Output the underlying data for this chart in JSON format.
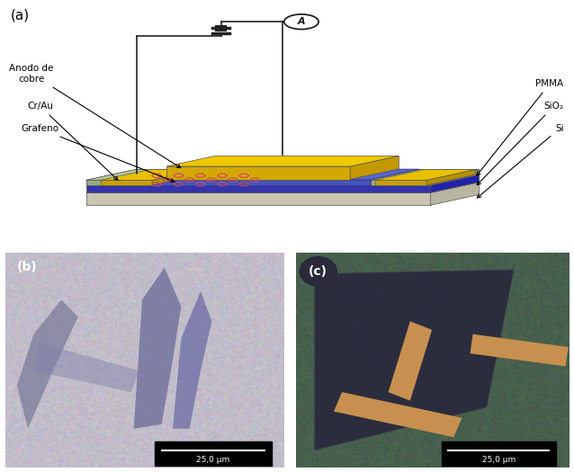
{
  "fig_width": 6.38,
  "fig_height": 5.25,
  "dpi": 100,
  "bg_color": "#ffffff",
  "label_a": "(a)",
  "label_b": "(b)",
  "label_c": "(c)",
  "scale_bar_text": "25,0 μm",
  "colors": {
    "wire_color": "#222222",
    "micro_b_bg": "#c8c0cc",
    "micro_c_bg": "#4a6050"
  }
}
